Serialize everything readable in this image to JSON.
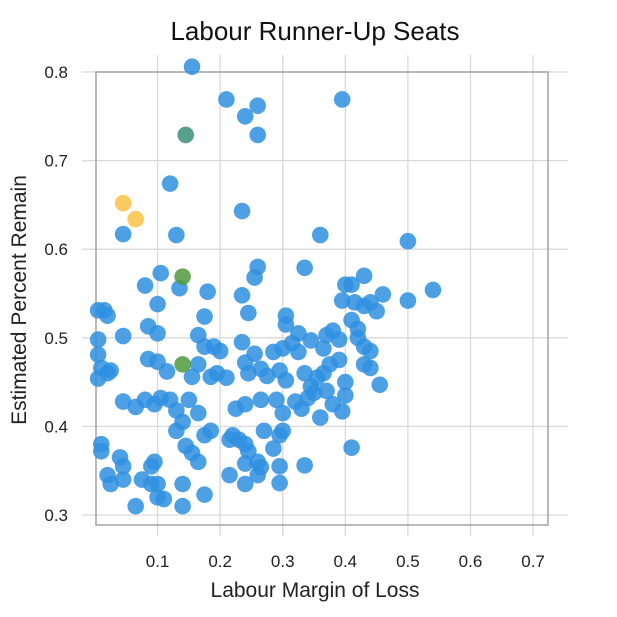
{
  "chart_data": {
    "type": "scatter",
    "title": "Labour Runner-Up Seats",
    "xlabel": "Labour Margin of Loss",
    "ylabel": "Estimated Percent Remain",
    "xlim": [
      0,
      0.75
    ],
    "ylim": [
      0.29,
      0.81
    ],
    "xticks": [
      0.1,
      0.2,
      0.3,
      0.4,
      0.5,
      0.6,
      0.7
    ],
    "xtick_labels": [
      "0.1",
      "0.2",
      "0.3",
      "0.4",
      "0.5",
      "0.6",
      "0.7"
    ],
    "yticks": [
      0.3,
      0.4,
      0.5,
      0.6,
      0.7,
      0.8
    ],
    "ytick_labels": [
      "0.3",
      "0.4",
      "0.5",
      "0.6",
      "0.7",
      "0.8"
    ],
    "grid": true,
    "legend": "none",
    "colors": {
      "blue": "#2f8fe0",
      "teal": "#3a8f78",
      "olive": "#4f9a3c",
      "yellow": "#f9c242"
    },
    "point_opacity": 0.85,
    "series": [
      {
        "color": "teal",
        "points": [
          [
            0.145,
            0.729
          ]
        ]
      },
      {
        "color": "olive",
        "points": [
          [
            0.14,
            0.569
          ],
          [
            0.14,
            0.47
          ]
        ]
      },
      {
        "color": "yellow",
        "points": [
          [
            0.045,
            0.652
          ],
          [
            0.065,
            0.634
          ]
        ]
      },
      {
        "color": "blue",
        "points": [
          [
            0.155,
            0.806
          ],
          [
            0.21,
            0.769
          ],
          [
            0.26,
            0.762
          ],
          [
            0.24,
            0.75
          ],
          [
            0.26,
            0.729
          ],
          [
            0.395,
            0.769
          ],
          [
            0.12,
            0.674
          ],
          [
            0.235,
            0.643
          ],
          [
            0.045,
            0.617
          ],
          [
            0.13,
            0.616
          ],
          [
            0.36,
            0.616
          ],
          [
            0.5,
            0.609
          ],
          [
            0.335,
            0.579
          ],
          [
            0.26,
            0.58
          ],
          [
            0.105,
            0.573
          ],
          [
            0.255,
            0.568
          ],
          [
            0.43,
            0.57
          ],
          [
            0.08,
            0.559
          ],
          [
            0.135,
            0.556
          ],
          [
            0.18,
            0.552
          ],
          [
            0.235,
            0.548
          ],
          [
            0.4,
            0.56
          ],
          [
            0.41,
            0.56
          ],
          [
            0.46,
            0.549
          ],
          [
            0.54,
            0.554
          ],
          [
            0.005,
            0.531
          ],
          [
            0.015,
            0.531
          ],
          [
            0.02,
            0.525
          ],
          [
            0.1,
            0.538
          ],
          [
            0.175,
            0.524
          ],
          [
            0.245,
            0.528
          ],
          [
            0.305,
            0.525
          ],
          [
            0.305,
            0.515
          ],
          [
            0.395,
            0.542
          ],
          [
            0.415,
            0.54
          ],
          [
            0.43,
            0.536
          ],
          [
            0.44,
            0.54
          ],
          [
            0.5,
            0.542
          ],
          [
            0.45,
            0.53
          ],
          [
            0.41,
            0.52
          ],
          [
            0.42,
            0.51
          ],
          [
            0.005,
            0.498
          ],
          [
            0.005,
            0.481
          ],
          [
            0.045,
            0.502
          ],
          [
            0.085,
            0.513
          ],
          [
            0.1,
            0.505
          ],
          [
            0.165,
            0.503
          ],
          [
            0.175,
            0.49
          ],
          [
            0.19,
            0.49
          ],
          [
            0.2,
            0.485
          ],
          [
            0.235,
            0.495
          ],
          [
            0.255,
            0.482
          ],
          [
            0.285,
            0.484
          ],
          [
            0.3,
            0.488
          ],
          [
            0.315,
            0.494
          ],
          [
            0.325,
            0.484
          ],
          [
            0.345,
            0.497
          ],
          [
            0.37,
            0.503
          ],
          [
            0.38,
            0.508
          ],
          [
            0.39,
            0.498
          ],
          [
            0.42,
            0.5
          ],
          [
            0.43,
            0.49
          ],
          [
            0.44,
            0.485
          ],
          [
            0.325,
            0.505
          ],
          [
            0.365,
            0.488
          ],
          [
            0.01,
            0.466
          ],
          [
            0.02,
            0.46
          ],
          [
            0.025,
            0.463
          ],
          [
            0.005,
            0.454
          ],
          [
            0.085,
            0.476
          ],
          [
            0.1,
            0.473
          ],
          [
            0.115,
            0.462
          ],
          [
            0.155,
            0.456
          ],
          [
            0.165,
            0.47
          ],
          [
            0.185,
            0.456
          ],
          [
            0.195,
            0.46
          ],
          [
            0.21,
            0.455
          ],
          [
            0.24,
            0.472
          ],
          [
            0.245,
            0.46
          ],
          [
            0.265,
            0.465
          ],
          [
            0.275,
            0.457
          ],
          [
            0.295,
            0.463
          ],
          [
            0.305,
            0.452
          ],
          [
            0.335,
            0.46
          ],
          [
            0.345,
            0.445
          ],
          [
            0.355,
            0.455
          ],
          [
            0.365,
            0.46
          ],
          [
            0.375,
            0.47
          ],
          [
            0.39,
            0.475
          ],
          [
            0.43,
            0.47
          ],
          [
            0.44,
            0.466
          ],
          [
            0.455,
            0.447
          ],
          [
            0.4,
            0.45
          ],
          [
            0.37,
            0.44
          ],
          [
            0.045,
            0.428
          ],
          [
            0.065,
            0.422
          ],
          [
            0.08,
            0.43
          ],
          [
            0.095,
            0.425
          ],
          [
            0.105,
            0.432
          ],
          [
            0.12,
            0.43
          ],
          [
            0.13,
            0.418
          ],
          [
            0.15,
            0.43
          ],
          [
            0.165,
            0.415
          ],
          [
            0.225,
            0.42
          ],
          [
            0.24,
            0.425
          ],
          [
            0.265,
            0.43
          ],
          [
            0.29,
            0.43
          ],
          [
            0.3,
            0.415
          ],
          [
            0.32,
            0.428
          ],
          [
            0.33,
            0.42
          ],
          [
            0.34,
            0.432
          ],
          [
            0.35,
            0.438
          ],
          [
            0.36,
            0.41
          ],
          [
            0.38,
            0.425
          ],
          [
            0.4,
            0.435
          ],
          [
            0.395,
            0.417
          ],
          [
            0.01,
            0.38
          ],
          [
            0.01,
            0.372
          ],
          [
            0.13,
            0.395
          ],
          [
            0.14,
            0.405
          ],
          [
            0.145,
            0.378
          ],
          [
            0.175,
            0.39
          ],
          [
            0.185,
            0.395
          ],
          [
            0.22,
            0.39
          ],
          [
            0.23,
            0.385
          ],
          [
            0.24,
            0.38
          ],
          [
            0.245,
            0.372
          ],
          [
            0.215,
            0.385
          ],
          [
            0.27,
            0.395
          ],
          [
            0.285,
            0.375
          ],
          [
            0.295,
            0.39
          ],
          [
            0.3,
            0.395
          ],
          [
            0.41,
            0.376
          ],
          [
            0.04,
            0.365
          ],
          [
            0.045,
            0.355
          ],
          [
            0.09,
            0.355
          ],
          [
            0.095,
            0.36
          ],
          [
            0.155,
            0.37
          ],
          [
            0.165,
            0.36
          ],
          [
            0.24,
            0.358
          ],
          [
            0.26,
            0.36
          ],
          [
            0.265,
            0.354
          ],
          [
            0.295,
            0.355
          ],
          [
            0.335,
            0.356
          ],
          [
            0.02,
            0.345
          ],
          [
            0.025,
            0.335
          ],
          [
            0.045,
            0.34
          ],
          [
            0.075,
            0.34
          ],
          [
            0.09,
            0.335
          ],
          [
            0.1,
            0.335
          ],
          [
            0.14,
            0.335
          ],
          [
            0.215,
            0.345
          ],
          [
            0.24,
            0.335
          ],
          [
            0.26,
            0.345
          ],
          [
            0.295,
            0.336
          ],
          [
            0.065,
            0.31
          ],
          [
            0.1,
            0.32
          ],
          [
            0.11,
            0.318
          ],
          [
            0.14,
            0.31
          ],
          [
            0.175,
            0.323
          ]
        ]
      }
    ]
  }
}
